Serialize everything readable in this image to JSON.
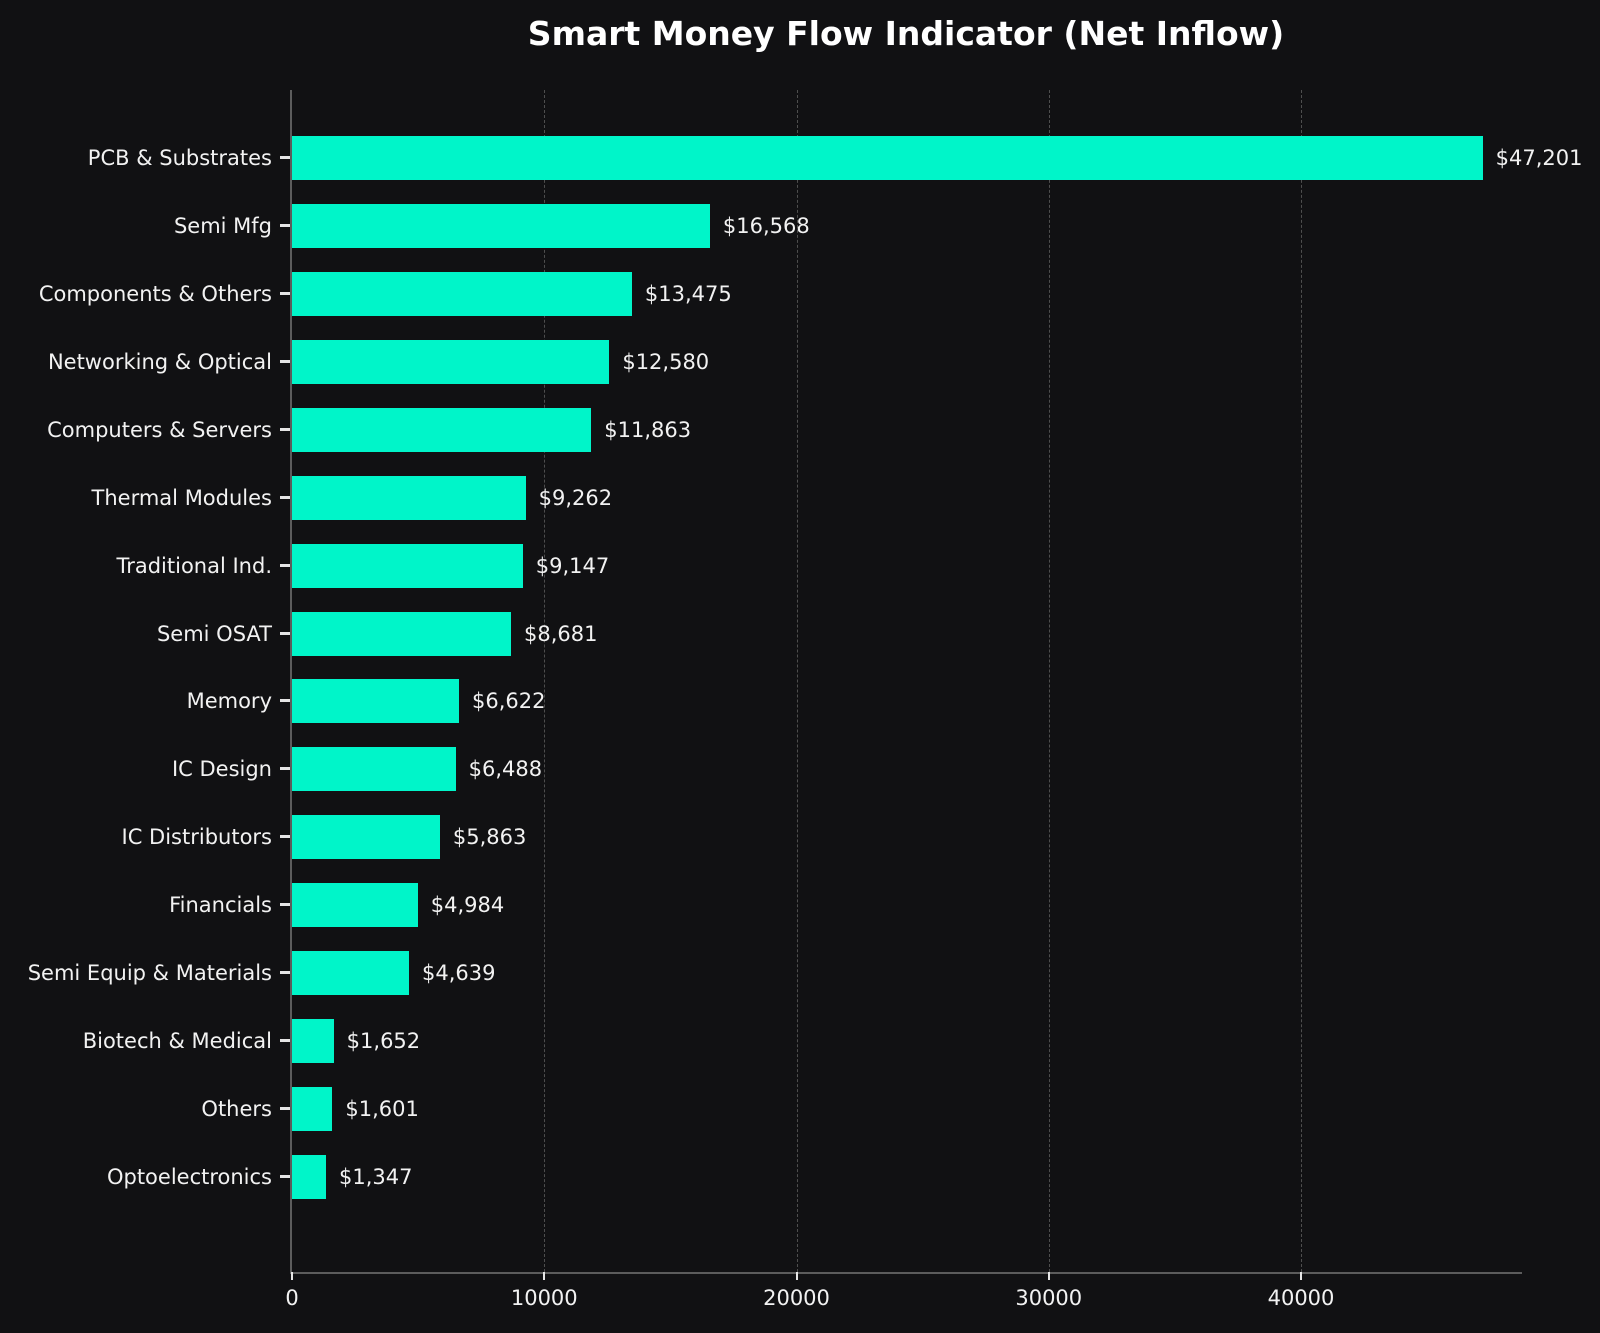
{
  "chart_data": {
    "type": "bar",
    "orientation": "horizontal",
    "title": "Smart Money Flow Indicator (Net Inflow)",
    "categories": [
      "PCB & Substrates",
      "Semi Mfg",
      "Components & Others",
      "Networking & Optical",
      "Computers & Servers",
      "Thermal Modules",
      "Traditional Ind.",
      "Semi OSAT",
      "Memory",
      "IC Design",
      "IC Distributors",
      "Financials",
      "Semi Equip & Materials",
      "Biotech & Medical",
      "Others",
      "Optoelectronics"
    ],
    "values": [
      47201,
      16568,
      13475,
      12580,
      11863,
      9262,
      9147,
      8681,
      6622,
      6488,
      5863,
      4984,
      4639,
      1652,
      1601,
      1347
    ],
    "value_labels": [
      "$47,201",
      "$16,568",
      "$13,475",
      "$12,580",
      "$11,863",
      "$9,262",
      "$9,147",
      "$8,681",
      "$6,622",
      "$6,488",
      "$5,863",
      "$4,984",
      "$4,639",
      "$1,652",
      "$1,601",
      "$1,347"
    ],
    "xlabel": "",
    "ylabel": "",
    "x_ticks": [
      0,
      10000,
      20000,
      30000,
      40000
    ],
    "x_tick_labels": [
      "0",
      "10000",
      "20000",
      "30000",
      "40000"
    ],
    "xlim": [
      0,
      48840
    ],
    "grid": "vertical-dashed",
    "legend": "none",
    "colors": {
      "bar": "#00f5c9",
      "background": "#111113",
      "text": "#f2f2f2",
      "gridline": "#4e4e4e",
      "spine": "#5c5c5c"
    }
  }
}
